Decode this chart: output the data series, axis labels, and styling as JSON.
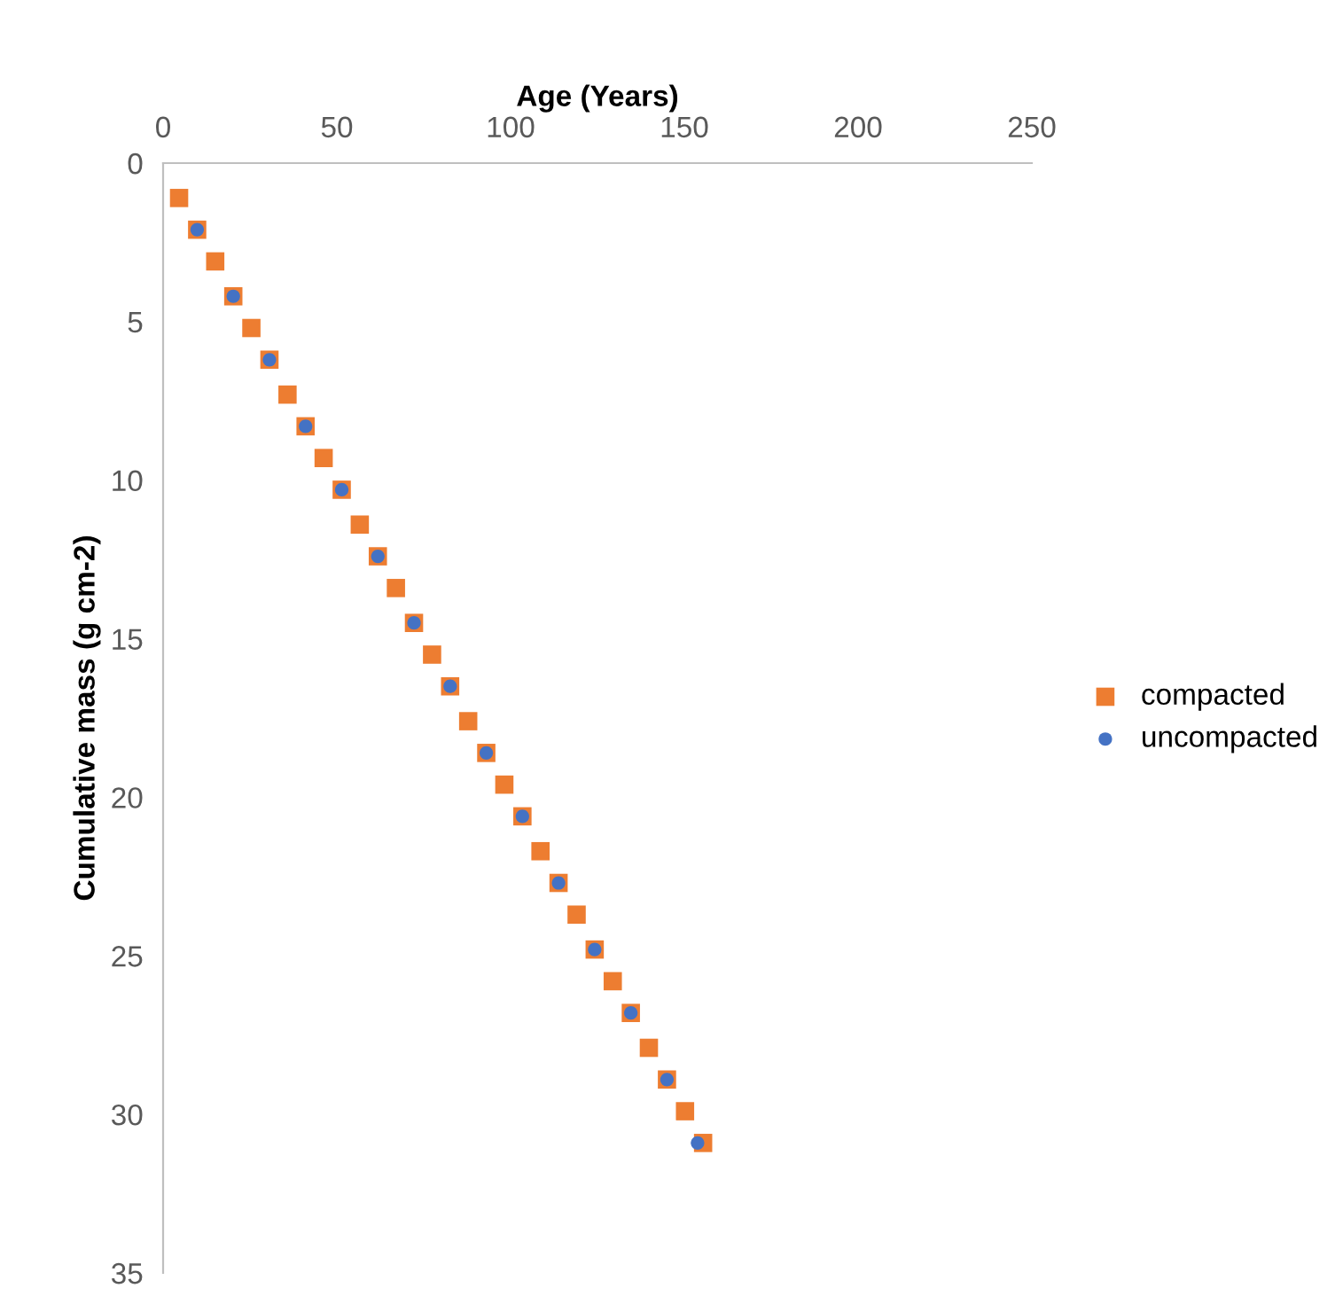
{
  "chart_data": {
    "type": "scatter",
    "xlabel": "Age (Years)",
    "ylabel": "Cumulative mass (g cm-2)",
    "xlim": [
      0,
      250
    ],
    "xticks": [
      0,
      50,
      100,
      150,
      200,
      250
    ],
    "ylim": [
      35,
      0
    ],
    "yticks": [
      0,
      5,
      10,
      15,
      20,
      25,
      30,
      35
    ],
    "grid": false,
    "legend": "right",
    "series": [
      {
        "name": "compacted",
        "color": "#ed7d31",
        "marker": "square",
        "x": [
          4.6,
          9.8,
          15.0,
          20.2,
          25.4,
          30.6,
          35.8,
          41.0,
          46.2,
          51.4,
          56.6,
          61.8,
          67.0,
          72.2,
          77.4,
          82.6,
          87.8,
          93.0,
          98.2,
          103.4,
          108.6,
          113.8,
          119.0,
          124.2,
          129.4,
          134.6,
          139.8,
          145.0,
          150.2,
          155.4
        ],
        "values": [
          1.1,
          2.1,
          3.1,
          4.2,
          5.2,
          6.2,
          7.3,
          8.3,
          9.3,
          10.3,
          11.4,
          12.4,
          13.4,
          14.5,
          15.5,
          16.5,
          17.6,
          18.6,
          19.6,
          20.6,
          21.7,
          22.7,
          23.7,
          24.8,
          25.8,
          26.8,
          27.9,
          28.9,
          29.9,
          30.9
        ]
      },
      {
        "name": "uncompacted",
        "color": "#4472c4",
        "marker": "circle",
        "x": [
          9.8,
          20.2,
          30.6,
          41.0,
          51.4,
          61.8,
          72.2,
          82.6,
          93.0,
          103.4,
          113.8,
          124.2,
          134.6,
          145.0,
          153.8
        ],
        "values": [
          2.1,
          4.2,
          6.2,
          8.3,
          10.3,
          12.4,
          14.5,
          16.5,
          18.6,
          20.6,
          22.7,
          24.8,
          26.8,
          28.9,
          30.9
        ]
      }
    ]
  }
}
